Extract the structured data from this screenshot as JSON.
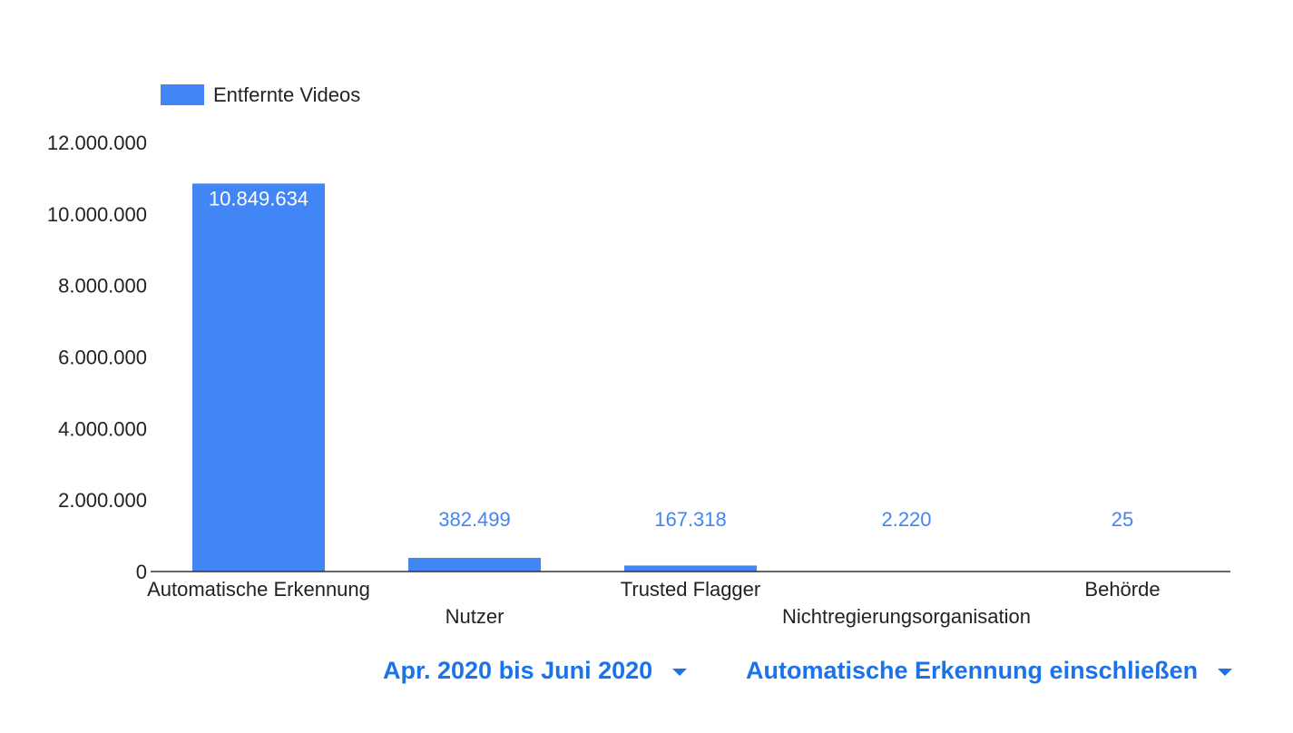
{
  "chart_data": {
    "type": "bar",
    "categories": [
      "Automatische Erkennung",
      "Nutzer",
      "Trusted Flagger",
      "Nichtregierungsorganisation",
      "Behörde"
    ],
    "series": [
      {
        "name": "Entfernte Videos",
        "values": [
          10849634,
          382499,
          167318,
          2220,
          25
        ],
        "color": "#4285f4"
      }
    ],
    "data_labels": [
      "10.849.634",
      "382.499",
      "167.318",
      "2.220",
      "25"
    ],
    "yticks": [
      {
        "value": 0,
        "label": "0"
      },
      {
        "value": 2000000,
        "label": "2.000.000"
      },
      {
        "value": 4000000,
        "label": "4.000.000"
      },
      {
        "value": 6000000,
        "label": "6.000.000"
      },
      {
        "value": 8000000,
        "label": "8.000.000"
      },
      {
        "value": 10000000,
        "label": "10.000.000"
      },
      {
        "value": 12000000,
        "label": "12.000.000"
      }
    ],
    "ylim": [
      0,
      12000000
    ],
    "title": "",
    "xlabel": "",
    "ylabel": "",
    "grid": false,
    "legend_position": "top-left",
    "label_color_inside": "#ffffff",
    "label_color_outside": "#4285f4"
  },
  "controls": {
    "period_label": "Apr. 2020 bis Juni 2020",
    "filter_label": "Automatische Erkennung einschließen"
  }
}
